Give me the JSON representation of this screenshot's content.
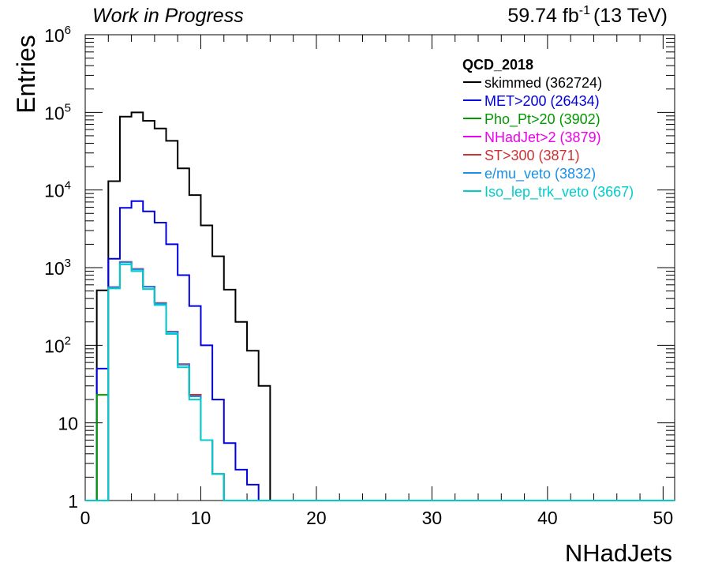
{
  "header": {
    "left_text": "Work in Progress",
    "lumi_value": "59.74 fb",
    "lumi_exponent": "-1",
    "energy": "(13 TeV)"
  },
  "chart_data": {
    "type": "line",
    "style": "step histogram",
    "title": "",
    "xlabel": "NHadJets",
    "ylabel": "Entries",
    "xlim": [
      0,
      51
    ],
    "ylim": [
      1,
      1000000
    ],
    "y_scale": "log",
    "bin_width": 1,
    "bin_lows": [
      0,
      1,
      2,
      3,
      4,
      5,
      6,
      7,
      8,
      9,
      10,
      11,
      12,
      13,
      14,
      15,
      16,
      17,
      18,
      19,
      20,
      21,
      22,
      23,
      24,
      25,
      26,
      27,
      28,
      29,
      30,
      31,
      32,
      33,
      34,
      35,
      36,
      37,
      38,
      39,
      40,
      41,
      42,
      43,
      44,
      45,
      46,
      47,
      48,
      49,
      50
    ],
    "x_ticks": [
      0,
      10,
      20,
      30,
      40,
      50
    ],
    "y_ticks": [
      {
        "value": 1,
        "mant": "1",
        "exp": ""
      },
      {
        "value": 10,
        "mant": "10",
        "exp": ""
      },
      {
        "value": 100,
        "mant": "10",
        "exp": "2"
      },
      {
        "value": 1000,
        "mant": "10",
        "exp": "3"
      },
      {
        "value": 10000,
        "mant": "10",
        "exp": "4"
      },
      {
        "value": 100000,
        "mant": "10",
        "exp": "5"
      },
      {
        "value": 1000000,
        "mant": "10",
        "exp": "6"
      }
    ],
    "legend_title": "QCD_2018",
    "legend_placement": "top-right",
    "grid": false,
    "series": [
      {
        "name": "skimmed (362724)",
        "color": "#000000",
        "values": [
          0,
          510,
          13000,
          88000,
          100000,
          78000,
          62000,
          43000,
          19000,
          8600,
          3500,
          1400,
          520,
          200,
          85,
          30,
          0,
          0,
          0,
          0,
          0,
          0,
          0,
          0,
          0,
          0,
          0,
          0,
          0,
          0,
          0,
          0,
          0,
          0,
          0,
          0,
          0,
          0,
          0,
          0,
          0,
          0,
          0,
          0,
          0,
          0,
          0,
          0,
          0,
          0,
          0
        ]
      },
      {
        "name": "MET>200 (26434)",
        "color": "#0000e0",
        "values": [
          0,
          50,
          1300,
          5900,
          7200,
          5300,
          3800,
          2000,
          800,
          320,
          100,
          20,
          5.5,
          2.5,
          1.6,
          0,
          0,
          0,
          0,
          0,
          0,
          0,
          0,
          0,
          0,
          0,
          0,
          0,
          0,
          0,
          0,
          0,
          0,
          0,
          0,
          0,
          0,
          0,
          0,
          0,
          0,
          0,
          0,
          0,
          0,
          0,
          0,
          0,
          0,
          0,
          0
        ]
      },
      {
        "name": "Pho_Pt>20 (3902)",
        "color": "#009900",
        "values": [
          0,
          23,
          560,
          1180,
          960,
          570,
          350,
          150,
          57,
          23,
          6,
          2.2,
          0,
          0,
          0,
          0,
          0,
          0,
          0,
          0,
          0,
          0,
          0,
          0,
          0,
          0,
          0,
          0,
          0,
          0,
          0,
          0,
          0,
          0,
          0,
          0,
          0,
          0,
          0,
          0,
          0,
          0,
          0,
          0,
          0,
          0,
          0,
          0,
          0,
          0,
          0
        ]
      },
      {
        "name": "NHadJet>2 (3879)",
        "color": "#ee00ee",
        "values": [
          0,
          0,
          560,
          1180,
          960,
          570,
          350,
          150,
          57,
          23,
          6,
          2.2,
          0,
          0,
          0,
          0,
          0,
          0,
          0,
          0,
          0,
          0,
          0,
          0,
          0,
          0,
          0,
          0,
          0,
          0,
          0,
          0,
          0,
          0,
          0,
          0,
          0,
          0,
          0,
          0,
          0,
          0,
          0,
          0,
          0,
          0,
          0,
          0,
          0,
          0,
          0
        ]
      },
      {
        "name": "ST>300 (3871)",
        "color": "#cc3333",
        "values": [
          0,
          0,
          560,
          1180,
          960,
          570,
          350,
          150,
          57,
          23,
          6,
          2.2,
          0,
          0,
          0,
          0,
          0,
          0,
          0,
          0,
          0,
          0,
          0,
          0,
          0,
          0,
          0,
          0,
          0,
          0,
          0,
          0,
          0,
          0,
          0,
          0,
          0,
          0,
          0,
          0,
          0,
          0,
          0,
          0,
          0,
          0,
          0,
          0,
          0,
          0,
          0
        ]
      },
      {
        "name": "e/mu_veto (3832)",
        "color": "#1a8fe6",
        "values": [
          0,
          0,
          555,
          1170,
          950,
          565,
          345,
          148,
          56,
          22,
          6,
          2.2,
          0,
          0,
          0,
          0,
          0,
          0,
          0,
          0,
          0,
          0,
          0,
          0,
          0,
          0,
          0,
          0,
          0,
          0,
          0,
          0,
          0,
          0,
          0,
          0,
          0,
          0,
          0,
          0,
          0,
          0,
          0,
          0,
          0,
          0,
          0,
          0,
          0,
          0,
          0
        ]
      },
      {
        "name": "Iso_lep_trk_veto (3667)",
        "color": "#00cccc",
        "values": [
          0,
          0,
          540,
          1100,
          900,
          530,
          330,
          140,
          52,
          20,
          6,
          2.2,
          0,
          0,
          0,
          0,
          0,
          0,
          0,
          0,
          0,
          0,
          0,
          0,
          0,
          0,
          0,
          0,
          0,
          0,
          0,
          0,
          0,
          0,
          0,
          0,
          0,
          0,
          0,
          0,
          0,
          0,
          0,
          0,
          0,
          0,
          0,
          0,
          0,
          0,
          0
        ]
      }
    ]
  }
}
